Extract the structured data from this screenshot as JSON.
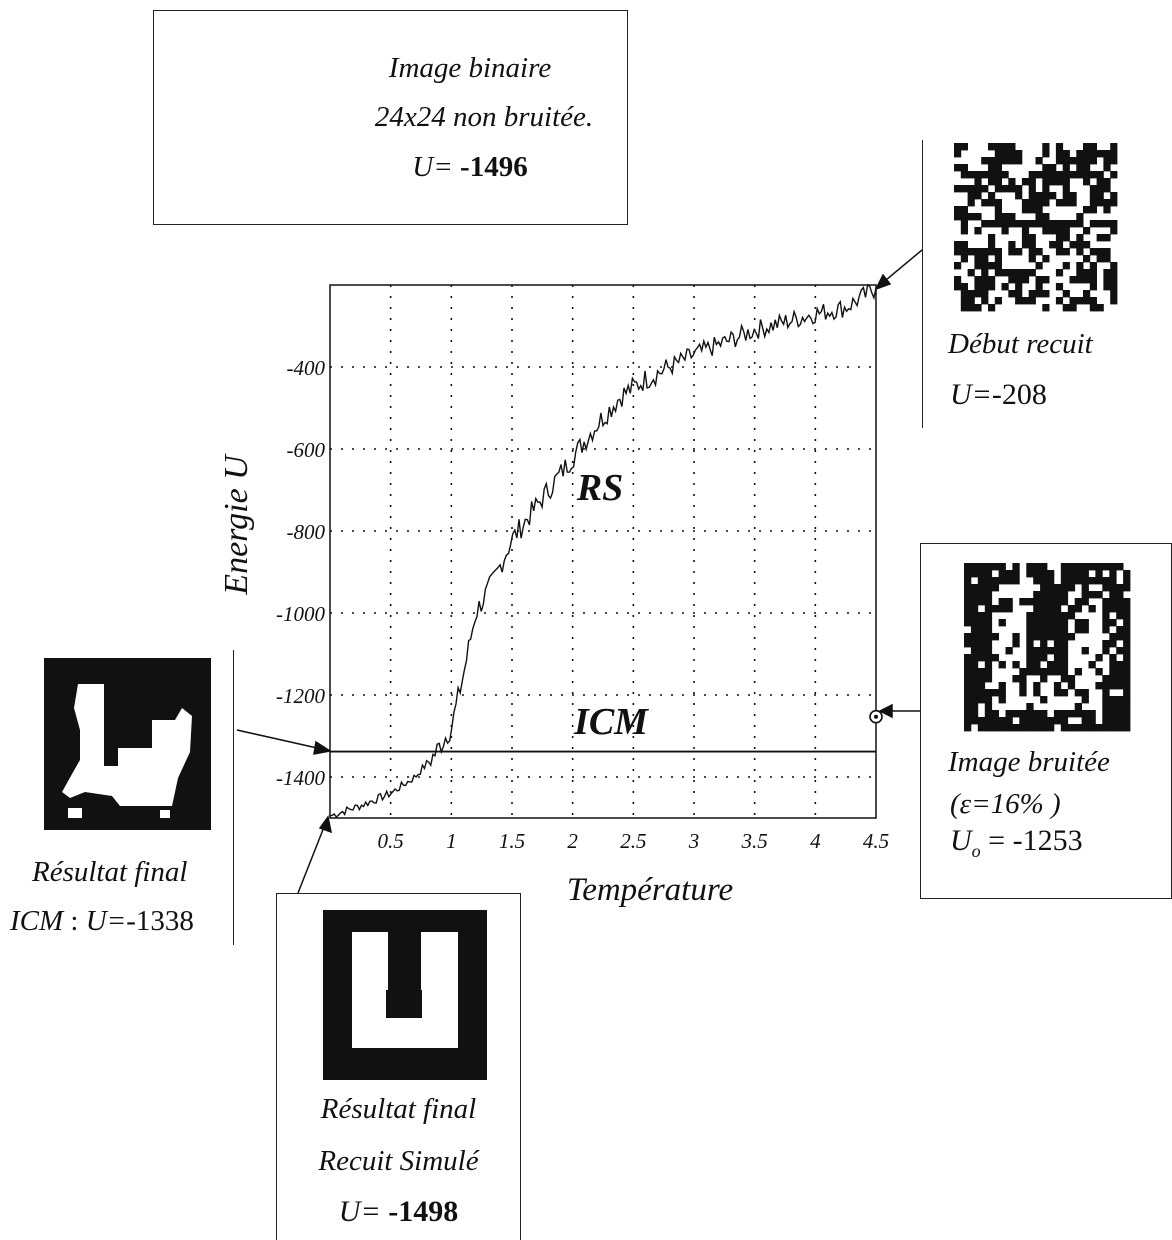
{
  "figure": {
    "box_top": {
      "line1": "Image binaire",
      "line2": "24x24 non bruitée.",
      "u_label": "U=",
      "u_value": "-1496"
    },
    "start": {
      "line1": "Début recuit",
      "u_label": "U=",
      "u_value": "-208"
    },
    "noisy": {
      "line1": "Image bruitée",
      "line2": "(ε=16% )",
      "u_label": "U",
      "u_sub": "o",
      "u_eq": " = -1253"
    },
    "icm_result": {
      "line1": "Résultat final",
      "line2_prefix": "ICM",
      "line2_rest": " : ",
      "u_label": "U=",
      "u_value": "-1338"
    },
    "rs_result": {
      "line1": "Résultat final",
      "line2": "Recuit Simulé",
      "u_label": "U=",
      "u_value": "-1498"
    }
  },
  "chart_data": {
    "type": "line",
    "xlabel": "Température",
    "ylabel": "Energie U",
    "xlim": [
      0,
      4.5
    ],
    "ylim": [
      -1500,
      -200
    ],
    "xticks": [
      "0.5",
      "1",
      "1.5",
      "2",
      "2.5",
      "3",
      "3.5",
      "4",
      "4.5"
    ],
    "yticks": [
      "-400",
      "-600",
      "-800",
      "-1000",
      "-1200",
      "-1400"
    ],
    "grid": true,
    "annotations": [
      "RS",
      "ICM"
    ],
    "series": [
      {
        "name": "RS",
        "x": [
          0,
          0.25,
          0.5,
          0.7,
          0.85,
          1.0,
          1.1,
          1.2,
          1.35,
          1.5,
          1.65,
          1.8,
          2.0,
          2.2,
          2.4,
          2.6,
          2.8,
          3.0,
          3.25,
          3.5,
          3.75,
          4.0,
          4.25,
          4.5
        ],
        "y": [
          -1495,
          -1470,
          -1440,
          -1400,
          -1350,
          -1280,
          -1150,
          -1000,
          -920,
          -820,
          -760,
          -700,
          -620,
          -540,
          -470,
          -430,
          -400,
          -370,
          -340,
          -310,
          -290,
          -270,
          -255,
          -208
        ]
      },
      {
        "name": "ICM",
        "x": [
          0,
          4.5
        ],
        "y": [
          -1338,
          -1338
        ]
      }
    ],
    "marker_point": {
      "x": 4.5,
      "y": -1253
    }
  },
  "colors": {
    "ink": "#111111",
    "background": "#ffffff"
  }
}
